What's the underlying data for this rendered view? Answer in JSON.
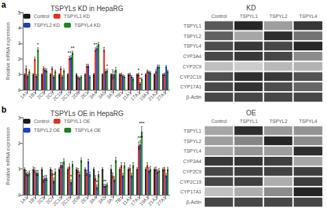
{
  "chart_data": [
    {
      "type": "bar",
      "panel_label": "a",
      "title": "TSPYLs KD in HepaRG",
      "ylabel": "Relative mRNA expression",
      "categories": [
        "1A1",
        "1B1",
        "2C8",
        "2C9",
        "2C18",
        "2C19",
        "2D6",
        "2E1",
        "3A4",
        "3A5",
        "3A7",
        "7B1",
        "11A1",
        "17A1",
        "19A1",
        "21A2",
        "27A1"
      ],
      "series": [
        {
          "name": "Control",
          "color": "#1a1a1a",
          "values": [
            1.0,
            1.0,
            1.0,
            1.0,
            1.0,
            1.0,
            1.0,
            1.0,
            1.0,
            1.0,
            1.0,
            1.0,
            1.0,
            1.0,
            1.0,
            1.0,
            1.0
          ],
          "errors": [
            0.05,
            0.05,
            0.05,
            0.05,
            0.05,
            0.05,
            0.05,
            0.05,
            0.05,
            0.05,
            0.05,
            0.05,
            0.05,
            0.05,
            0.05,
            0.05,
            0.05
          ]
        },
        {
          "name": "TSPYL1 KD",
          "color": "#e03020",
          "values": [
            1.4,
            2.0,
            1.4,
            1.4,
            1.4,
            2.05,
            0.8,
            1.55,
            2.6,
            2.6,
            1.0,
            1.0,
            1.0,
            1.0,
            1.2,
            1.2,
            1.0
          ],
          "errors": [
            0.15,
            0.12,
            0.1,
            0.08,
            0.1,
            0.12,
            0.06,
            0.1,
            0.12,
            0.15,
            0.3,
            0.08,
            0.08,
            0.08,
            0.08,
            0.1,
            0.08
          ]
        },
        {
          "name": "TSPYL2 KD",
          "color": "#2040c0",
          "values": [
            0.9,
            0.9,
            1.3,
            0.85,
            0.85,
            2.1,
            0.75,
            1.55,
            2.7,
            1.2,
            1.0,
            0.9,
            0.85,
            0.4,
            1.15,
            1.5,
            1.5
          ],
          "errors": [
            0.08,
            0.1,
            0.1,
            0.07,
            0.08,
            0.1,
            0.07,
            0.1,
            0.12,
            0.1,
            0.2,
            0.07,
            0.07,
            0.07,
            0.07,
            0.1,
            0.08
          ]
        },
        {
          "name": "TSPYL4 KD",
          "color": "#208020",
          "values": [
            1.2,
            2.6,
            1.25,
            1.2,
            1.25,
            2.4,
            0.85,
            0.85,
            2.95,
            1.25,
            1.3,
            0.85,
            0.7,
            0.7,
            1.1,
            1.5,
            1.2
          ],
          "errors": [
            0.1,
            0.12,
            0.1,
            0.08,
            0.1,
            0.1,
            0.07,
            0.07,
            0.12,
            0.1,
            0.15,
            0.07,
            0.07,
            0.07,
            0.07,
            0.1,
            0.08
          ]
        }
      ],
      "annotations": [
        {
          "category": "1B1",
          "series": "TSPYL4 KD",
          "text": "*"
        },
        {
          "category": "2C19",
          "series": "TSPYL1 KD",
          "text": "**"
        },
        {
          "category": "2C19",
          "series": "TSPYL4 KD",
          "text": "**"
        },
        {
          "category": "3A4",
          "series": "TSPYL1 KD",
          "text": "**"
        },
        {
          "category": "3A5",
          "series": "TSPYL4 KD",
          "text": "*"
        },
        {
          "category": "17A1",
          "series": "TSPYL1 KD",
          "text": "*"
        },
        {
          "category": "17A1",
          "series": "TSPYL2 KD",
          "text": "*"
        },
        {
          "category": "17A1",
          "series": "TSPYL4 KD",
          "text": "*"
        }
      ],
      "ylim": [
        0,
        5
      ],
      "yticks": [
        0,
        1,
        2,
        3,
        4,
        5
      ],
      "legend": "upper left",
      "grid": false
    },
    {
      "type": "bar",
      "panel_label": "b",
      "title": "TSPYLs OE in HepaRG",
      "ylabel": "Relative mRNA expression",
      "categories": [
        "1A1",
        "1B1",
        "2C8",
        "2C9",
        "2C18",
        "2C19",
        "2D6",
        "2E1",
        "3A4",
        "3A5",
        "3A7",
        "7B1",
        "11A1",
        "17A1",
        "19A1",
        "21A2",
        "27A1"
      ],
      "series": [
        {
          "name": "Control",
          "color": "#1a1a1a",
          "values": [
            1.0,
            1.0,
            1.0,
            1.0,
            1.0,
            1.0,
            1.0,
            1.0,
            1.0,
            1.0,
            1.0,
            1.0,
            1.0,
            1.0,
            1.0,
            1.0,
            1.0
          ],
          "errors": [
            0.05,
            0.08,
            0.05,
            0.05,
            0.05,
            0.05,
            0.05,
            0.05,
            0.05,
            0.05,
            0.15,
            0.05,
            0.05,
            0.05,
            0.05,
            0.05,
            0.05
          ]
        },
        {
          "name": "TSPYL1 OE",
          "color": "#e03020",
          "values": [
            0.85,
            0.95,
            0.6,
            0.85,
            1.15,
            1.1,
            0.95,
            0.85,
            0.65,
            0.35,
            0.75,
            1.15,
            1.05,
            1.9,
            1.15,
            1.0,
            1.0
          ],
          "errors": [
            0.1,
            0.1,
            0.12,
            0.1,
            0.1,
            0.1,
            0.08,
            0.1,
            0.1,
            0.06,
            0.1,
            0.1,
            0.1,
            0.15,
            0.1,
            0.08,
            0.07
          ]
        },
        {
          "name": "TSPYL2 OE",
          "color": "#2040c0",
          "values": [
            0.8,
            0.85,
            0.65,
            0.55,
            1.15,
            0.5,
            0.8,
            1.3,
            0.3,
            0.35,
            0.6,
            0.75,
            0.75,
            1.95,
            0.95,
            0.9,
            0.75
          ],
          "errors": [
            0.08,
            0.1,
            0.1,
            0.1,
            0.1,
            0.08,
            0.08,
            0.08,
            0.08,
            0.06,
            0.1,
            0.08,
            0.08,
            0.15,
            0.1,
            0.07,
            0.07
          ]
        },
        {
          "name": "TSPYL4 OE",
          "color": "#208020",
          "values": [
            0.85,
            0.85,
            0.65,
            0.9,
            1.3,
            1.2,
            1.35,
            0.8,
            0.8,
            0.4,
            1.35,
            1.15,
            1.15,
            2.45,
            1.0,
            0.95,
            1.0
          ],
          "errors": [
            0.08,
            0.1,
            0.1,
            0.1,
            0.1,
            0.1,
            0.08,
            0.08,
            0.1,
            0.06,
            0.1,
            0.1,
            0.1,
            0.2,
            0.1,
            0.07,
            0.07
          ]
        }
      ],
      "annotations": [
        {
          "category": "2C9",
          "series": "TSPYL2 OE",
          "text": "*"
        },
        {
          "category": "2C19",
          "series": "TSPYL2 OE",
          "text": "*"
        },
        {
          "category": "3A4",
          "series": "TSPYL2 OE",
          "text": "*"
        },
        {
          "category": "3A5",
          "series": "TSPYL1 OE",
          "text": "*"
        },
        {
          "category": "3A5",
          "series": "TSPYL2 OE",
          "text": "*"
        },
        {
          "category": "17A1",
          "series": "TSPYL2 OE",
          "text": "***"
        },
        {
          "category": "17A1",
          "series": "TSPYL4 OE",
          "text": "***"
        }
      ],
      "ylim": [
        0,
        3
      ],
      "yticks": [
        0,
        1,
        2,
        3
      ],
      "legend": "upper left",
      "grid": false
    },
    {
      "type": "heatmap",
      "title": "KD",
      "categories": [
        "Control",
        "TSPYL1",
        "TSPYL2",
        "TSPYL4"
      ],
      "rows": [
        "TSPYL1",
        "TSPYL2",
        "TSPYL4",
        "CYP3A4",
        "CYP2C9",
        "CYP2C19",
        "CYP17A1",
        "β-Actin"
      ],
      "values": [
        [
          0.35,
          0.15,
          0.62,
          0.22
        ],
        [
          0.38,
          0.65,
          0.18,
          0.45
        ],
        [
          0.3,
          0.22,
          0.28,
          0.15
        ],
        [
          0.28,
          0.22,
          0.28,
          0.55
        ],
        [
          0.75,
          0.8,
          0.72,
          0.7
        ],
        [
          0.3,
          0.18,
          0.22,
          0.32
        ],
        [
          0.28,
          0.2,
          0.3,
          0.4
        ],
        [
          0.28,
          0.28,
          0.28,
          0.28
        ]
      ]
    },
    {
      "type": "heatmap",
      "title": "OE",
      "categories": [
        "Control",
        "TSPYL1",
        "TSPYL2",
        "TSPYL4"
      ],
      "rows": [
        "TSPYL1",
        "TSPYL2",
        "TSPYL4",
        "CYP3A4",
        "CYP2C9",
        "CYP2C19",
        "CYP17A1",
        "β-Actin"
      ],
      "values": [
        [
          0.65,
          0.18,
          0.6,
          0.58
        ],
        [
          0.62,
          0.52,
          0.15,
          0.55
        ],
        [
          0.65,
          0.58,
          0.62,
          0.18
        ],
        [
          0.22,
          0.2,
          0.25,
          0.65
        ],
        [
          0.28,
          0.24,
          0.26,
          0.25
        ],
        [
          0.28,
          0.25,
          0.68,
          0.24
        ],
        [
          0.75,
          0.68,
          0.55,
          0.15
        ],
        [
          0.28,
          0.28,
          0.28,
          0.28
        ]
      ]
    }
  ]
}
